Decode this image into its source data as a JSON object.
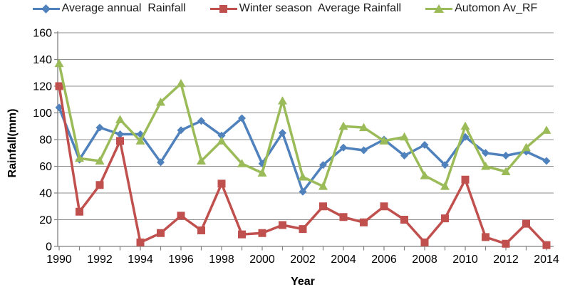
{
  "chart_data": {
    "type": "line",
    "title": "",
    "xlabel": "Year",
    "ylabel": "Rainfall(mm)",
    "x": [
      1990,
      1991,
      1992,
      1993,
      1994,
      1995,
      1996,
      1997,
      1998,
      1999,
      2000,
      2001,
      2002,
      2003,
      2004,
      2005,
      2006,
      2007,
      2008,
      2009,
      2010,
      2011,
      2012,
      2013,
      2014
    ],
    "x_label_every": 2,
    "ylim": [
      0,
      160
    ],
    "ytick_step": 20,
    "grid": "horizontal",
    "legend_position": "top",
    "series": [
      {
        "name": "Average annual  Rainfall",
        "marker": "diamond",
        "color": "#4F81BD",
        "values": [
          104,
          65,
          89,
          84,
          84,
          63,
          87,
          94,
          83,
          96,
          62,
          85,
          41,
          61,
          74,
          72,
          80,
          68,
          76,
          61,
          82,
          70,
          68,
          71,
          64
        ]
      },
      {
        "name": "Winter season  Average Rainfall",
        "marker": "square",
        "color": "#C0504D",
        "values": [
          120,
          26,
          46,
          79,
          3,
          10,
          23,
          12,
          47,
          9,
          10,
          16,
          13,
          30,
          22,
          18,
          30,
          20,
          3,
          21,
          50,
          7,
          2,
          17,
          1
        ]
      },
      {
        "name": "Automon Av_RF",
        "marker": "triangle",
        "color": "#9BBB59",
        "values": [
          137,
          66,
          64,
          95,
          79,
          108,
          122,
          64,
          79,
          62,
          55,
          109,
          52,
          45,
          90,
          89,
          79,
          82,
          53,
          45,
          90,
          60,
          56,
          74,
          87
        ]
      }
    ],
    "colors": {
      "gridline": "#8C8C8C",
      "axis": "#808080",
      "tick": "#808080",
      "text": "#000000"
    }
  }
}
